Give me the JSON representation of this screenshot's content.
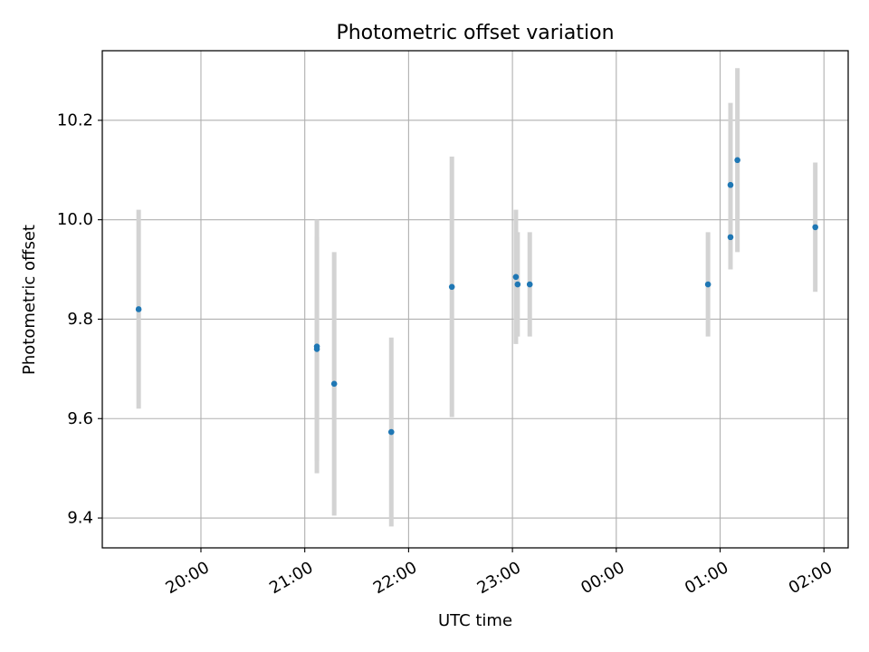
{
  "chart_data": {
    "type": "scatter",
    "title": "Photometric offset variation",
    "xlabel": "UTC time",
    "ylabel": "Photometric offset",
    "x_start": "19:03",
    "x_end": "02:14",
    "xticks": [
      "20:00",
      "21:00",
      "22:00",
      "23:00",
      "00:00",
      "01:00",
      "02:00"
    ],
    "yticks": [
      "9.4",
      "9.6",
      "9.8",
      "10.0",
      "10.2"
    ],
    "ylim": [
      9.34,
      10.34
    ],
    "grid": true,
    "colors": {
      "point": "#1f77b4",
      "errorbar": "#d3d3d3",
      "grid": "#b0b0b0",
      "axis": "#000000"
    },
    "points": [
      {
        "x": "19:24",
        "y": 9.82,
        "yerr": 0.2
      },
      {
        "x": "21:07",
        "y": 9.745,
        "yerr": 0.255
      },
      {
        "x": "21:07",
        "y": 9.74,
        "yerr": 0.225
      },
      {
        "x": "21:17",
        "y": 9.67,
        "yerr": 0.265
      },
      {
        "x": "21:50",
        "y": 9.573,
        "yerr": 0.19
      },
      {
        "x": "22:25",
        "y": 9.865,
        "yerr": 0.262
      },
      {
        "x": "23:02",
        "y": 9.885,
        "yerr": 0.135
      },
      {
        "x": "23:03",
        "y": 9.87,
        "yerr": 0.105
      },
      {
        "x": "23:10",
        "y": 9.87,
        "yerr": 0.105
      },
      {
        "x": "00:53",
        "y": 9.87,
        "yerr": 0.105
      },
      {
        "x": "01:06",
        "y": 9.965,
        "yerr": 0.065
      },
      {
        "x": "01:06",
        "y": 10.07,
        "yerr": 0.165
      },
      {
        "x": "01:10",
        "y": 10.12,
        "yerr": 0.185
      },
      {
        "x": "01:55",
        "y": 9.985,
        "yerr": 0.13
      }
    ]
  }
}
